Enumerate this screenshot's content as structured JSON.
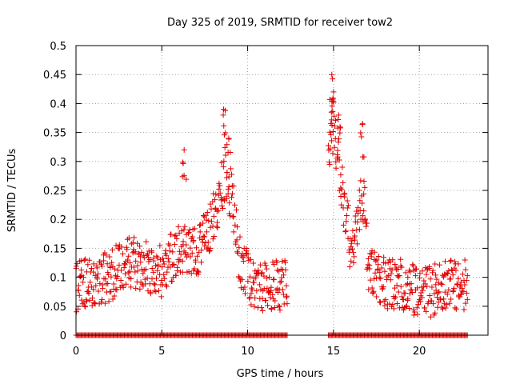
{
  "chart_data": {
    "type": "scatter",
    "title": "Day 325 of 2019, SRMTID for receiver tow2",
    "xlabel": "GPS time / hours",
    "ylabel": "SRMTID / TECUs",
    "xlim": [
      0,
      24
    ],
    "ylim": [
      0,
      0.5
    ],
    "x_ticks": [
      0,
      5,
      10,
      15,
      20
    ],
    "x_tick_labels": [
      "0",
      "5",
      "10",
      "15",
      "20"
    ],
    "y_ticks": [
      0,
      0.05,
      0.1,
      0.15,
      0.2,
      0.25,
      0.3,
      0.35,
      0.4,
      0.45,
      0.5
    ],
    "y_tick_labels": [
      "0",
      "0.05",
      "0.1",
      "0.15",
      "0.2",
      "0.25",
      "0.3",
      "0.35",
      "0.4",
      "0.45",
      "0.5"
    ],
    "grid": true,
    "marker": "+",
    "color": "#e00000",
    "series": [
      {
        "name": "SRMTID",
        "segments": [
          {
            "x_start": 0.0,
            "x_end": 12.3,
            "step": 0.1,
            "profile": [
              [
                0,
                0.085
              ],
              [
                2,
                0.1
              ],
              [
                3,
                0.13
              ],
              [
                4,
                0.12
              ],
              [
                5,
                0.11
              ],
              [
                6,
                0.15
              ],
              [
                7,
                0.14
              ],
              [
                8,
                0.2
              ],
              [
                8.7,
                0.28
              ],
              [
                9.2,
                0.22
              ],
              [
                9.5,
                0.13
              ],
              [
                10,
                0.1
              ],
              [
                11,
                0.085
              ],
              [
                12.3,
                0.09
              ]
            ],
            "spread": 0.045
          },
          {
            "x_start": 14.7,
            "x_end": 22.8,
            "step": 0.1,
            "profile": [
              [
                14.7,
                0.3
              ],
              [
                15,
                0.36
              ],
              [
                15.5,
                0.25
              ],
              [
                16,
                0.15
              ],
              [
                16.8,
                0.25
              ],
              [
                17,
                0.12
              ],
              [
                18,
                0.09
              ],
              [
                19,
                0.09
              ],
              [
                20,
                0.07
              ],
              [
                21,
                0.08
              ],
              [
                22.8,
                0.09
              ]
            ],
            "spread": 0.045
          }
        ],
        "peaks": [
          {
            "x": 6.3,
            "y": 0.32
          },
          {
            "x": 8.6,
            "y": 0.39
          },
          {
            "x": 8.9,
            "y": 0.34
          },
          {
            "x": 14.9,
            "y": 0.45
          },
          {
            "x": 15.0,
            "y": 0.42
          },
          {
            "x": 15.3,
            "y": 0.38
          },
          {
            "x": 16.7,
            "y": 0.365
          }
        ],
        "zero_ranges": [
          [
            0.0,
            12.3
          ],
          [
            14.7,
            22.8
          ]
        ]
      }
    ]
  }
}
